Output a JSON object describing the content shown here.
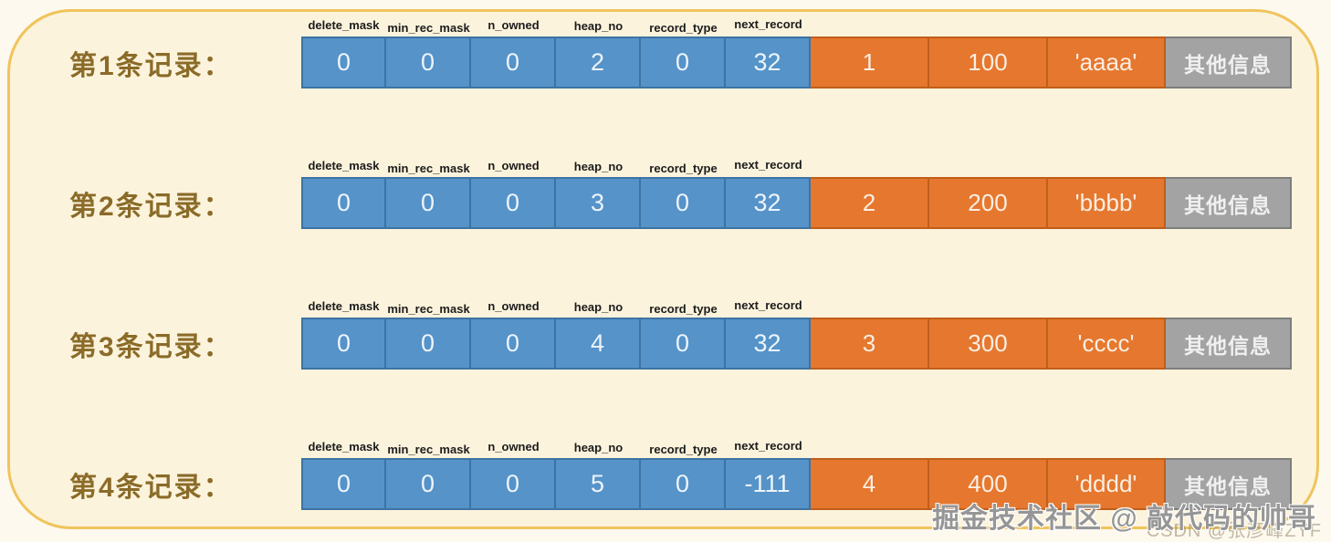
{
  "field_headers": [
    "delete_mask",
    "min_rec_mask",
    "n_owned",
    "heap_no",
    "record_type",
    "next_record"
  ],
  "records": [
    {
      "label": "第1条记录：",
      "fields": [
        "0",
        "0",
        "0",
        "2",
        "0",
        "32"
      ],
      "user_data": [
        "1",
        "100",
        "'aaaa'"
      ],
      "other_info": "其他信息"
    },
    {
      "label": "第2条记录：",
      "fields": [
        "0",
        "0",
        "0",
        "3",
        "0",
        "32"
      ],
      "user_data": [
        "2",
        "200",
        "'bbbb'"
      ],
      "other_info": "其他信息"
    },
    {
      "label": "第3条记录：",
      "fields": [
        "0",
        "0",
        "0",
        "4",
        "0",
        "32"
      ],
      "user_data": [
        "3",
        "300",
        "'cccc'"
      ],
      "other_info": "其他信息"
    },
    {
      "label": "第4条记录：",
      "fields": [
        "0",
        "0",
        "0",
        "5",
        "0",
        "-111"
      ],
      "user_data": [
        "4",
        "400",
        "'dddd'"
      ],
      "other_info": "其他信息"
    }
  ],
  "watermarks": {
    "primary": "掘金技术社区 @ 敲代码的帅哥",
    "secondary": "CSDN @张彦峰ZYF"
  },
  "colors": {
    "record_header_blue": "#5593c9",
    "user_data_orange": "#e6772e",
    "other_info_gray": "#a3a3a3",
    "panel_background": "#fcf3dc",
    "panel_border_gold": "#f0c45c",
    "label_brown": "#8a6b28"
  }
}
